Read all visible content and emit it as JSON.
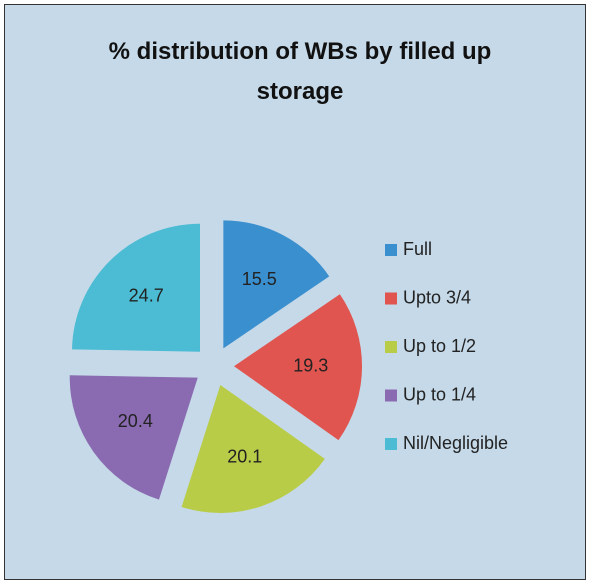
{
  "chart_data": {
    "type": "pie",
    "title": "% distribution of WBs by filled up storage",
    "categories": [
      "Full",
      "Upto 3/4",
      "Up to 1/2",
      "Up to 1/4",
      "Nil/Negligible"
    ],
    "values": [
      15.5,
      19.3,
      20.1,
      20.4,
      24.7
    ],
    "colors": [
      "#3a8fcf",
      "#e0554f",
      "#b9cc48",
      "#8a6bb1",
      "#4bbcd3"
    ],
    "legend": "right"
  }
}
